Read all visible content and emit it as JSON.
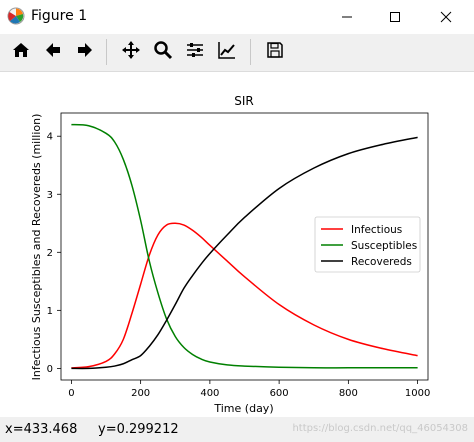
{
  "window": {
    "title": "Figure 1"
  },
  "toolbar": {
    "tools": [
      "home-icon",
      "back-arrow-icon",
      "forward-arrow-icon",
      "pan-icon",
      "zoom-icon",
      "configure-subplots-icon",
      "edit-axis-icon",
      "save-icon"
    ]
  },
  "status": {
    "coords": "x=433.468     y=0.299212",
    "watermark": "https://blog.csdn.net/qq_46054308"
  },
  "colors": {
    "infectious": "#ff0000",
    "susceptibles": "#008000",
    "recovereds": "#000000"
  },
  "chart_data": {
    "type": "line",
    "title": "SIR",
    "xlabel": "Time (day)",
    "ylabel": "Infectious Susceptibles and Recovereds (million)",
    "xlim": [
      -30,
      1030
    ],
    "ylim": [
      -0.2,
      4.4
    ],
    "xticks": [
      0,
      200,
      400,
      600,
      800,
      1000
    ],
    "yticks": [
      0,
      1,
      2,
      3,
      4
    ],
    "legend_position": "center-right",
    "grid": false,
    "x": [
      0,
      50,
      100,
      125,
      150,
      175,
      200,
      225,
      250,
      275,
      300,
      325,
      350,
      375,
      400,
      450,
      500,
      600,
      700,
      800,
      900,
      1000
    ],
    "series": [
      {
        "name": "Infectious",
        "color": "#ff0000",
        "values": [
          0.01,
          0.03,
          0.12,
          0.25,
          0.5,
          0.95,
          1.45,
          1.95,
          2.3,
          2.47,
          2.5,
          2.47,
          2.38,
          2.26,
          2.12,
          1.85,
          1.58,
          1.1,
          0.75,
          0.5,
          0.34,
          0.22
        ]
      },
      {
        "name": "Susceptibles",
        "color": "#008000",
        "values": [
          4.2,
          4.18,
          4.05,
          3.9,
          3.6,
          3.15,
          2.55,
          1.85,
          1.3,
          0.85,
          0.55,
          0.36,
          0.24,
          0.16,
          0.11,
          0.06,
          0.04,
          0.02,
          0.01,
          0.01,
          0.01,
          0.01
        ]
      },
      {
        "name": "Recovereds",
        "color": "#000000",
        "values": [
          0.0,
          0.0,
          0.02,
          0.04,
          0.08,
          0.15,
          0.22,
          0.38,
          0.58,
          0.83,
          1.1,
          1.38,
          1.6,
          1.8,
          1.98,
          2.3,
          2.6,
          3.1,
          3.45,
          3.7,
          3.86,
          3.98
        ]
      }
    ]
  }
}
